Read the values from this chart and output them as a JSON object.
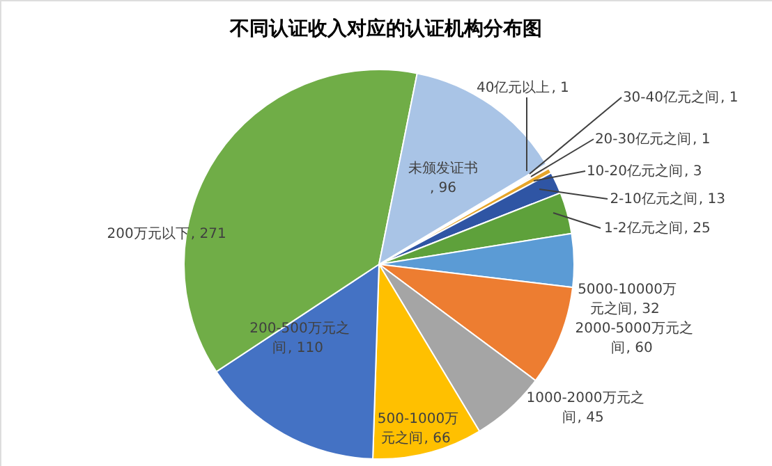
{
  "chart_data": {
    "type": "pie",
    "title": "不同认证收入对应的认证机构分布图",
    "categories": [
      "40亿元以上",
      "30-40亿元之间",
      "20-30亿元之间",
      "10-20亿元之间",
      "2-10亿元之间",
      "1-2亿元之间",
      "5000-10000万元之间",
      "2000-5000万元之间",
      "1000-2000万元之间",
      "500-1000万元之间",
      "200-500万元之间",
      "200万元以下",
      "未颁发证书"
    ],
    "values": [
      1,
      1,
      1,
      3,
      13,
      25,
      32,
      60,
      45,
      66,
      110,
      271,
      96
    ],
    "colors": [
      "#5b9bd5",
      "#a5a5a5",
      "#ed7d31",
      "#e6a52a",
      "#2f55a4",
      "#5ea13b",
      "#5b9bd5",
      "#ed7d31",
      "#a5a5a5",
      "#ffc000",
      "#4472c4",
      "#70ad47",
      "#a9c4e6"
    ],
    "value_labels": [
      ", 1",
      ", 1",
      ", 1",
      ", 3",
      ", 13",
      ", 25",
      ", 32",
      ", 60",
      ", 45",
      ", 66",
      ", 110",
      ", 271",
      ", 96"
    ]
  }
}
